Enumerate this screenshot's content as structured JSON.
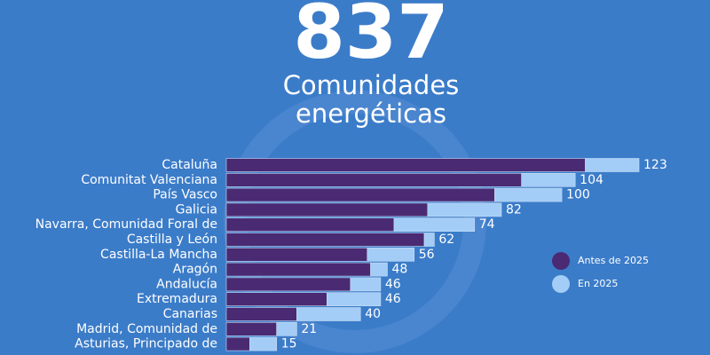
{
  "chart_data": {
    "type": "stacked-barh",
    "headline": "837",
    "title": "Comunidades energéticas",
    "categories": [
      "Cataluña",
      "Comunitat Valenciana",
      "País Vasco",
      "Galicia",
      "Navarra, Comunidad Foral de",
      "Castilla y León",
      "Castilla-La Mancha",
      "Aragón",
      "Andalucía",
      "Extremadura",
      "Canarias",
      "Madrid, Comunidad de",
      "Asturias, Principado de"
    ],
    "series": [
      {
        "name": "Antes de 2025",
        "color": "#4a2a72",
        "values": [
          107,
          88,
          80,
          60,
          50,
          59,
          42,
          43,
          37,
          30,
          21,
          15,
          7
        ]
      },
      {
        "name": "En 2025",
        "color": "#a3cdf6",
        "values": [
          16,
          16,
          20,
          22,
          24,
          3,
          14,
          5,
          9,
          16,
          19,
          6,
          8
        ]
      }
    ],
    "totals": [
      123,
      104,
      100,
      82,
      74,
      62,
      56,
      48,
      46,
      46,
      40,
      21,
      15
    ],
    "xlim": [
      0,
      123
    ],
    "legend": "right"
  }
}
